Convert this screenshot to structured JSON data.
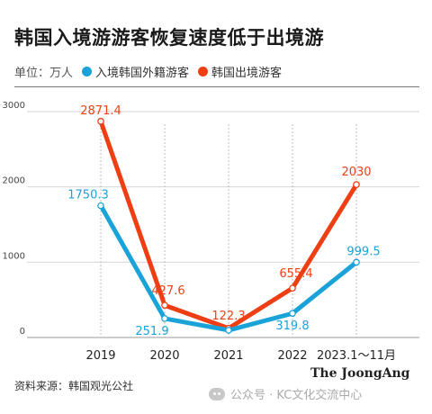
{
  "title": "韩国入境游游客恢复速度低于出境游",
  "legend": {
    "unit": "单位：万人",
    "items": [
      {
        "label": "入境韩国外籍游客",
        "color": "#1aa3d9"
      },
      {
        "label": "韩国出境游客",
        "color": "#ee3f14"
      }
    ]
  },
  "source": "资料来源：韩国观光公社",
  "brand": "The JoongAng",
  "watermark": "公众号 · KC文化交流中心",
  "chart_data": {
    "type": "line",
    "categories": [
      "2019",
      "2020",
      "2021",
      "2022",
      "2023.1～11月"
    ],
    "ylim": [
      0,
      3000
    ],
    "yticks": [
      0,
      1000,
      2000,
      3000
    ],
    "grid": true,
    "series": [
      {
        "name": "韩国出境游客",
        "color": "#ee3f14",
        "values": [
          2871.4,
          427.6,
          122.3,
          655.4,
          2030
        ],
        "labels": [
          "2871.4",
          "427.6",
          "122.3",
          "655.4",
          "2030"
        ]
      },
      {
        "name": "入境韩国外籍游客",
        "color": "#1aa3d9",
        "values": [
          1750.3,
          251.9,
          96.7,
          319.8,
          999.5
        ],
        "labels": [
          "1750.3",
          "251.9",
          "",
          "319.8",
          "999.5"
        ]
      }
    ]
  }
}
